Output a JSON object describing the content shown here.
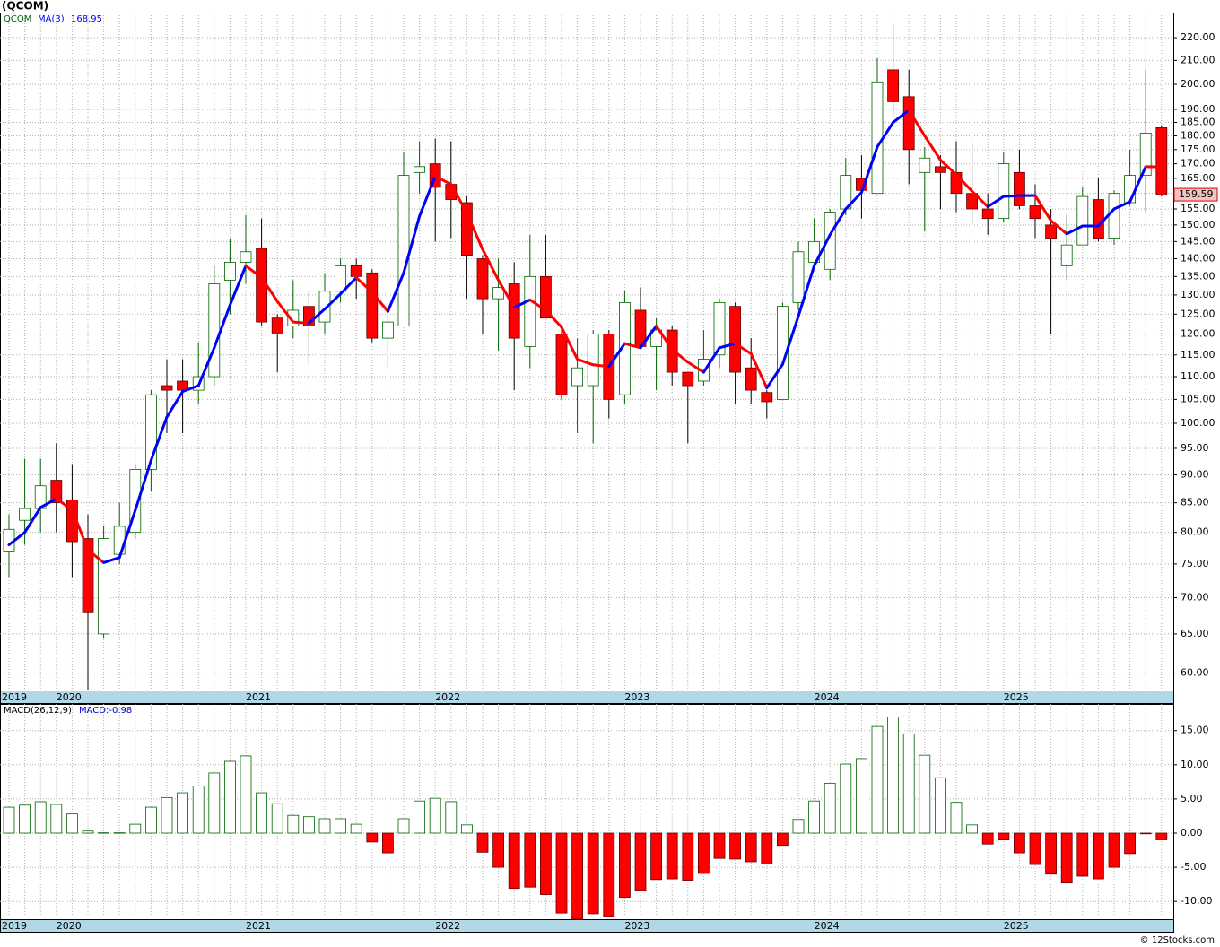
{
  "chart_data": [
    {
      "type": "candlestick",
      "title": "(QCOM)",
      "symbol": "QCOM",
      "categories": [
        "2019",
        null,
        null,
        "2020",
        null,
        null,
        null,
        null,
        null,
        null,
        null,
        null,
        null,
        null,
        null,
        "2021",
        null,
        null,
        null,
        null,
        null,
        null,
        null,
        null,
        null,
        null,
        null,
        "2022",
        null,
        null,
        null,
        null,
        null,
        null,
        null,
        null,
        null,
        null,
        null,
        "2023",
        null,
        null,
        null,
        null,
        null,
        null,
        null,
        null,
        null,
        null,
        null,
        "2024",
        null,
        null,
        null,
        null,
        null,
        null,
        null,
        null,
        null,
        null,
        null,
        "2025",
        null,
        null,
        null,
        null,
        null,
        null,
        null,
        null,
        null,
        null
      ],
      "open": [
        77,
        82,
        84,
        89,
        85.5,
        79,
        65,
        76.5,
        80,
        91,
        108,
        109,
        107,
        110,
        134,
        139,
        143,
        124,
        122,
        127,
        123,
        131,
        138,
        136,
        119,
        122,
        167,
        170,
        163,
        157,
        140,
        129,
        133,
        117,
        135,
        120,
        108,
        108,
        120,
        106,
        126,
        117,
        121,
        111,
        109,
        115,
        127,
        112,
        106.5,
        105,
        128,
        139,
        137,
        155,
        165,
        160,
        206,
        195,
        167,
        169,
        167,
        160,
        155,
        152,
        167,
        156,
        150,
        138,
        144,
        158,
        146,
        157,
        166,
        183
      ],
      "high": [
        83,
        93,
        93,
        96,
        92,
        83,
        81,
        85,
        92,
        107,
        114,
        114,
        118,
        138,
        146,
        153,
        152,
        125,
        134,
        131,
        136,
        140,
        140,
        137,
        126,
        174,
        178,
        179,
        178,
        159,
        141,
        140,
        139,
        147,
        147,
        122,
        119,
        121,
        121,
        131,
        132,
        124,
        122,
        111,
        121,
        129,
        128,
        119,
        107,
        128,
        145,
        152,
        155,
        172,
        173,
        211,
        226,
        206,
        176,
        173,
        178,
        177,
        160,
        174,
        175,
        163,
        155,
        153,
        162,
        165,
        161,
        175,
        206,
        184
      ],
      "low": [
        73,
        78,
        80,
        80,
        73,
        58,
        64.5,
        75,
        79,
        87,
        98,
        98,
        104,
        108,
        125,
        133,
        122,
        111,
        119,
        113,
        120,
        128,
        129,
        118,
        112,
        122,
        160,
        145,
        146,
        129,
        120,
        116,
        107,
        112,
        124,
        105,
        98,
        96,
        101,
        104,
        117,
        107,
        108,
        96,
        108,
        112,
        104,
        104,
        101,
        105,
        126,
        137,
        134,
        153,
        152,
        160,
        187,
        163,
        148,
        155,
        154,
        150,
        147,
        151,
        155,
        146,
        120,
        134,
        144,
        145,
        144,
        156,
        154,
        159
      ],
      "close": [
        80.5,
        84,
        88,
        85,
        78.5,
        68,
        79,
        81,
        91,
        106,
        107,
        107,
        110,
        133,
        139,
        142,
        123,
        120,
        126,
        122,
        131,
        138,
        135,
        119,
        123,
        166,
        169,
        162,
        158,
        141,
        129,
        132,
        119,
        135,
        124,
        106,
        112,
        120,
        105,
        128,
        117,
        121,
        111,
        108,
        114,
        128,
        111,
        107,
        104.5,
        127,
        142,
        145,
        154,
        166,
        161,
        201,
        193,
        175,
        172,
        167,
        160,
        155,
        152,
        170,
        156,
        152,
        146,
        144,
        159,
        146,
        160,
        166,
        181,
        159.59
      ],
      "up_color": "#ffffff",
      "down_color": "#ff0000",
      "ma": {
        "name": "MA(3)",
        "up_color": "#0000ff",
        "down_color": "#ff0000",
        "values": [
          78,
          80,
          84.2,
          85.7,
          83.8,
          77.2,
          75.2,
          76,
          83.7,
          92.7,
          101.3,
          106.7,
          108,
          116.7,
          127.3,
          138,
          134.7,
          128.3,
          123,
          122.7,
          126.3,
          130.3,
          134.7,
          130.7,
          125.7,
          136,
          152.7,
          165.7,
          163,
          153.7,
          142.7,
          134,
          126.7,
          128.7,
          126,
          121.7,
          114,
          112.7,
          112.3,
          117.7,
          116.7,
          122,
          116.3,
          113.3,
          111,
          116.7,
          117.7,
          115.3,
          107.5,
          112.8,
          124.5,
          138,
          147,
          155,
          160.3,
          176,
          185,
          189.7,
          180,
          171.3,
          166.3,
          160.7,
          155.7,
          159,
          159.3,
          159.3,
          151.3,
          147.3,
          149.7,
          149.7,
          155,
          157.3,
          169,
          168.95
        ]
      },
      "log_scale": true,
      "grid": true,
      "ylim": [
        57.9,
        231.6
      ],
      "yticks": [
        {
          "value": 60,
          "label": "60.00"
        },
        {
          "value": 65,
          "label": "65.00"
        },
        {
          "value": 70,
          "label": "70.00"
        },
        {
          "value": 75,
          "label": "75.00"
        },
        {
          "value": 80,
          "label": "80.00"
        },
        {
          "value": 85,
          "label": "85.00"
        },
        {
          "value": 90,
          "label": "90.00"
        },
        {
          "value": 95,
          "label": "95.00"
        },
        {
          "value": 100,
          "label": "100.00"
        },
        {
          "value": 105,
          "label": "105.00"
        },
        {
          "value": 110,
          "label": "110.00"
        },
        {
          "value": 115,
          "label": "115.00"
        },
        {
          "value": 120,
          "label": "120.00"
        },
        {
          "value": 125,
          "label": "125.00"
        },
        {
          "value": 130,
          "label": "130.00"
        },
        {
          "value": 135,
          "label": "135.00"
        },
        {
          "value": 140,
          "label": "140.00"
        },
        {
          "value": 145,
          "label": "145.00"
        },
        {
          "value": 150,
          "label": "150.00"
        },
        {
          "value": 155,
          "label": "155.00"
        },
        {
          "value": 160,
          "label": "160.00"
        },
        {
          "value": 165,
          "label": "165.00"
        },
        {
          "value": 170,
          "label": "170.00"
        },
        {
          "value": 175,
          "label": "175.00"
        },
        {
          "value": 180,
          "label": "180.00"
        },
        {
          "value": 185,
          "label": "185.00"
        },
        {
          "value": 190,
          "label": "190.00"
        },
        {
          "value": 200,
          "label": "200.00"
        },
        {
          "value": 210,
          "label": "210.00"
        },
        {
          "value": 220,
          "label": "220.00"
        }
      ]
    },
    {
      "type": "bar",
      "name": "MACD(26,12,9)",
      "legend_text": "MACD:-0.98",
      "categories": [
        "2019",
        null,
        null,
        "2020",
        null,
        null,
        null,
        null,
        null,
        null,
        null,
        null,
        null,
        null,
        null,
        "2021",
        null,
        null,
        null,
        null,
        null,
        null,
        null,
        null,
        null,
        null,
        null,
        "2022",
        null,
        null,
        null,
        null,
        null,
        null,
        null,
        null,
        null,
        null,
        null,
        "2023",
        null,
        null,
        null,
        null,
        null,
        null,
        null,
        null,
        null,
        null,
        null,
        "2024",
        null,
        null,
        null,
        null,
        null,
        null,
        null,
        null,
        null,
        null,
        null,
        "2025",
        null,
        null,
        null,
        null,
        null,
        null,
        null,
        null,
        null,
        null
      ],
      "values": [
        3.8,
        4.1,
        4.6,
        4.2,
        2.8,
        0.3,
        0.05,
        0.05,
        1.3,
        3.8,
        5.2,
        5.9,
        6.9,
        8.8,
        10.5,
        11.3,
        5.9,
        4.3,
        2.6,
        2.4,
        2.1,
        2.1,
        1.3,
        -1.3,
        -2.9,
        2.1,
        4.7,
        5.1,
        4.6,
        1.2,
        -2.8,
        -5.0,
        -8.1,
        -7.9,
        -9.0,
        -11.7,
        -12.6,
        -11.8,
        -12.2,
        -9.4,
        -8.4,
        -6.8,
        -6.7,
        -6.9,
        -5.9,
        -3.7,
        -3.8,
        -4.2,
        -4.5,
        -1.8,
        2.0,
        4.7,
        7.3,
        10.1,
        10.9,
        15.6,
        17.0,
        14.5,
        11.4,
        8.1,
        4.5,
        1.2,
        -1.6,
        -1.0,
        -2.9,
        -4.6,
        -6.0,
        -7.3,
        -6.3,
        -6.7,
        -5.0,
        -3.0,
        -0.1,
        -0.98
      ],
      "positive_color": "#ffffff",
      "negative_color": "#ff0000",
      "grid": true,
      "ylim": [
        -12.6,
        18.9
      ],
      "yticks": [
        {
          "value": -10,
          "label": "-10.00"
        },
        {
          "value": -5,
          "label": "-5.00"
        },
        {
          "value": 0,
          "label": "0.00"
        },
        {
          "value": 5,
          "label": "5.00"
        },
        {
          "value": 10,
          "label": "10.00"
        },
        {
          "value": 15,
          "label": "15.00"
        }
      ]
    }
  ],
  "footer": "© 12Stocks.com"
}
